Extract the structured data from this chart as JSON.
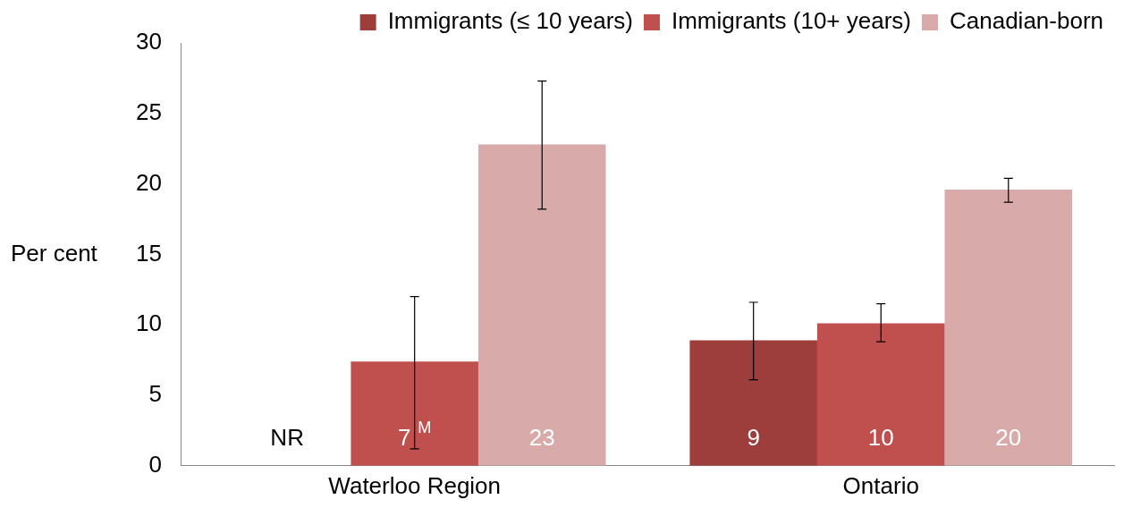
{
  "chart_data": {
    "type": "bar",
    "ylabel": "Per cent",
    "categories": [
      "Waterloo Region",
      "Ontario"
    ],
    "series": [
      {
        "name": "Immigrants (≤ 10 years)",
        "color": "#9e3e3c",
        "values": [
          null,
          8.9
        ],
        "errors": [
          null,
          [
            6.1,
            11.6
          ]
        ],
        "value_labels": [
          "NR",
          "9"
        ]
      },
      {
        "name": "Immigrants (10+ years)",
        "color": "#c0504d",
        "values": [
          7.4,
          10.1
        ],
        "errors": [
          [
            1.2,
            12.0
          ],
          [
            8.8,
            11.5
          ]
        ],
        "value_labels": [
          "7$^{M}$",
          "10"
        ]
      },
      {
        "name": "Canadian-born",
        "color": "#d9aaaa",
        "values": [
          22.8,
          19.6
        ],
        "errors": [
          [
            18.2,
            27.3
          ],
          [
            18.7,
            20.4
          ]
        ],
        "value_labels": [
          "23",
          "20"
        ]
      }
    ],
    "ylim": [
      0,
      30
    ],
    "yticks": [
      0,
      5,
      10,
      15,
      20,
      25,
      30
    ],
    "grid": false,
    "legend": "top"
  }
}
